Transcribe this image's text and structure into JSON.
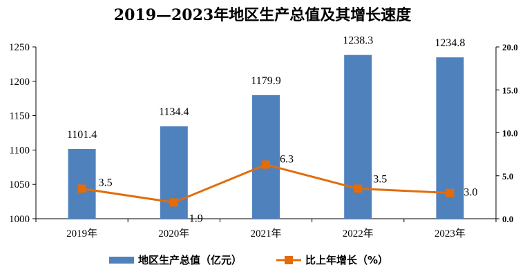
{
  "chart_data": {
    "type": "bar",
    "title": "2019—2023年地区生产总值及其增长速度",
    "categories": [
      "2019年",
      "2020年",
      "2021年",
      "2022年",
      "2023年"
    ],
    "series": [
      {
        "name": "地区生产总值（亿元）",
        "type": "bar",
        "axis": "left",
        "color": "#4F81BD",
        "values": [
          1101.4,
          1134.4,
          1179.9,
          1238.3,
          1234.8
        ],
        "labels": [
          "1101.4",
          "1134.4",
          "1179.9",
          "1238.3",
          "1234.8"
        ]
      },
      {
        "name": "比上年增长（%）",
        "type": "line",
        "axis": "right",
        "color": "#E36C09",
        "marker": "square",
        "values": [
          3.5,
          1.9,
          6.3,
          3.5,
          3.0
        ],
        "labels": [
          "3.5",
          "1.9",
          "6.3",
          "3.5",
          "3.0"
        ]
      }
    ],
    "y_left": {
      "ylim": [
        1000,
        1250
      ],
      "ticks": [
        1000,
        1050,
        1100,
        1150,
        1200,
        1250
      ],
      "tick_labels": [
        "1000",
        "1050",
        "1100",
        "1150",
        "1200",
        "1250"
      ]
    },
    "y_right": {
      "ylim": [
        0,
        20
      ],
      "ticks": [
        0,
        5,
        10,
        15,
        20
      ],
      "tick_labels": [
        "0.0",
        "5.0",
        "10.0",
        "15.0",
        "20.0"
      ]
    },
    "grid": false,
    "legend_position": "bottom-center"
  }
}
